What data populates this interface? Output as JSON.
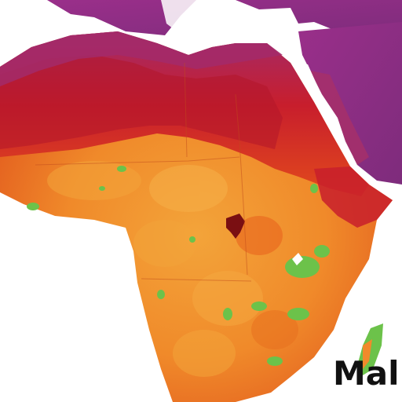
{
  "map": {
    "label": "Mal",
    "colors": {
      "ocean": "#ffffff",
      "purple_region": "#8e2d7d",
      "magenta_region": "#a83068",
      "dark_red": "#b2152a",
      "red": "#d22d1c",
      "orange_red": "#e8501c",
      "orange": "#f18a2b",
      "light_orange": "#f3a43a",
      "green": "#6cc24a",
      "dark_spot": "#7a0f12"
    }
  }
}
